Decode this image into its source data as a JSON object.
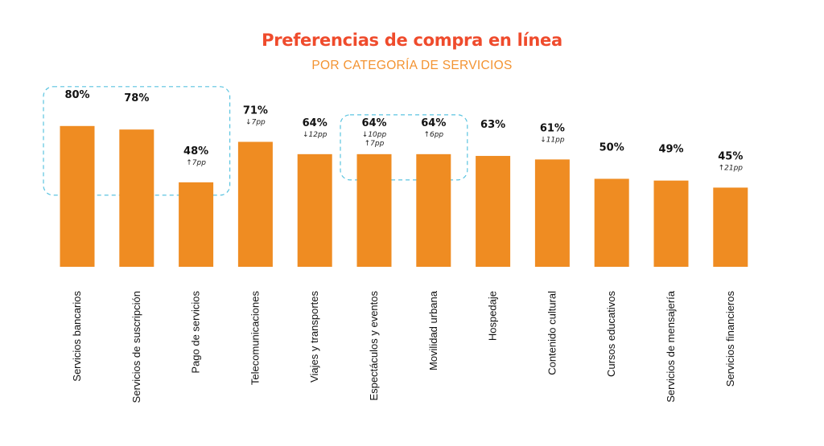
{
  "title": "Preferencias de compra en línea",
  "subtitle": "POR CATEGORÍA DE SERVICIOS",
  "colors": {
    "title": "#ef4b2c",
    "subtitle": "#f39331",
    "bar": "#ef8c22",
    "highlight": "#5bc4e0"
  },
  "chart_data": {
    "type": "bar",
    "title": "Preferencias de compra en línea",
    "subtitle": "POR CATEGORÍA DE SERVICIOS",
    "categories": [
      "Servicios bancarios",
      "Servicios de suscripción",
      "Pago de servicios",
      "Telecomunicaciones",
      "Viajes y transportes",
      "Espectáculos y eventos",
      "Movilidad urbana",
      "Hospedaje",
      "Contenido cultural",
      "Cursos educativos",
      "Servicios de mensajería",
      "Servicios financieros"
    ],
    "values": [
      80,
      78,
      48,
      71,
      64,
      64,
      64,
      63,
      61,
      50,
      49,
      45
    ],
    "value_labels": [
      "80%",
      "78%",
      "48%",
      "71%",
      "64%",
      "64%",
      "64%",
      "63%",
      "61%",
      "50%",
      "49%",
      "45%"
    ],
    "change_labels": [
      [],
      [],
      [
        "↑7pp"
      ],
      [
        "↓7pp"
      ],
      [
        "↓12pp"
      ],
      [
        "↓10pp",
        "↑7pp"
      ],
      [
        "↑6pp"
      ],
      [],
      [
        "↓11pp"
      ],
      [],
      [],
      [
        "↑21pp"
      ]
    ],
    "highlight_groups": [
      [
        "Servicios bancarios",
        "Servicios de suscripción",
        "Pago de servicios"
      ],
      [
        "Espectáculos y eventos",
        "Movilidad urbana"
      ]
    ],
    "grid": false,
    "legend": "none"
  }
}
